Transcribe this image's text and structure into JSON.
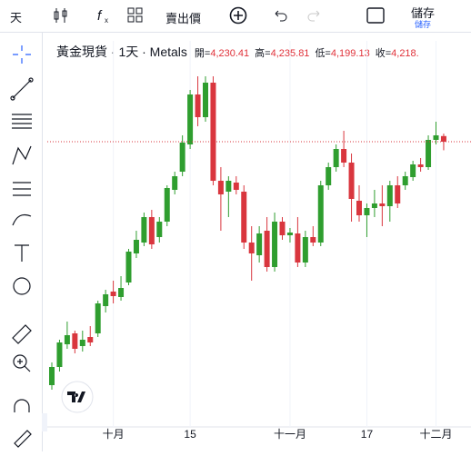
{
  "toolbar": {
    "interval": "天",
    "price_source": "賣出價",
    "save": "儲存",
    "save_sub": "儲存"
  },
  "chart_data": {
    "type": "candlestick",
    "symbol": "黃金現貨 · 1天 · Metals",
    "ohlc_legend": [
      {
        "label": "開=",
        "value": "4,230.41"
      },
      {
        "label": "高=",
        "value": "4,235.81"
      },
      {
        "label": "低=",
        "value": "4,199.13"
      },
      {
        "label": "收=",
        "value": "4,218."
      }
    ],
    "categories": [
      null,
      null,
      null,
      null,
      null,
      null,
      null,
      null,
      "十月",
      null,
      null,
      null,
      null,
      null,
      null,
      null,
      null,
      null,
      "15",
      null,
      null,
      null,
      null,
      null,
      null,
      null,
      null,
      null,
      null,
      null,
      null,
      "十一月",
      null,
      null,
      null,
      null,
      null,
      null,
      null,
      null,
      null,
      "17",
      null,
      null,
      null,
      null,
      null,
      null,
      null,
      null,
      "十二月",
      null
    ],
    "open": [
      3682,
      3722,
      3772,
      3796,
      3768,
      3788,
      3796,
      3856,
      3888,
      3876,
      3908,
      3972,
      3996,
      4052,
      4008,
      4042,
      4112,
      4152,
      4212,
      4322,
      4272,
      4348,
      4132,
      4108,
      4128,
      4108,
      3996,
      3968,
      4022,
      3942,
      4042,
      4012,
      4016,
      3952,
      4008,
      3996,
      4122,
      4162,
      4202,
      4172,
      4088,
      4056,
      4072,
      4082,
      4076,
      4122,
      4122,
      4140,
      4168,
      4162,
      4222,
      4230.41
    ],
    "high": [
      3732,
      3782,
      3822,
      3802,
      3802,
      3812,
      3868,
      3892,
      3912,
      3922,
      3982,
      4022,
      4062,
      4068,
      4052,
      4122,
      4152,
      4232,
      4332,
      4362,
      4362,
      4362,
      4162,
      4142,
      4142,
      4122,
      4032,
      4032,
      4052,
      4062,
      4052,
      4028,
      4052,
      4022,
      4032,
      4132,
      4172,
      4212,
      4242,
      4192,
      4122,
      4082,
      4112,
      4122,
      4132,
      4142,
      4152,
      4176,
      4182,
      4232,
      4262,
      4235.81
    ],
    "low": [
      3672,
      3712,
      3762,
      3752,
      3756,
      3768,
      3788,
      3842,
      3862,
      3868,
      3902,
      3962,
      3988,
      3982,
      3996,
      4032,
      4102,
      4142,
      4202,
      4252,
      4262,
      4122,
      4022,
      4052,
      4102,
      3982,
      3912,
      3952,
      3932,
      3932,
      4002,
      3996,
      3942,
      3942,
      3988,
      3988,
      4112,
      4152,
      4162,
      4042,
      4042,
      4008,
      4052,
      4032,
      4042,
      4072,
      4112,
      4132,
      4152,
      4156,
      4212,
      4199.13
    ],
    "close": [
      3722,
      3776,
      3792,
      3762,
      3782,
      3776,
      3862,
      3882,
      3878,
      3896,
      3976,
      4002,
      4052,
      3992,
      4042,
      4116,
      4142,
      4216,
      4322,
      4272,
      4348,
      4132,
      4102,
      4132,
      4112,
      3996,
      3972,
      4016,
      3942,
      4042,
      4012,
      4018,
      3952,
      4008,
      3996,
      4122,
      4162,
      4202,
      4172,
      4092,
      4056,
      4072,
      4082,
      4076,
      4122,
      4082,
      4142,
      4168,
      4162,
      4222,
      4232,
      4218
    ],
    "ylim": [
      3590,
      4440
    ],
    "up_color": "#2f9e2f",
    "down_color": "#d9363e",
    "price_line": true,
    "grid": true
  }
}
